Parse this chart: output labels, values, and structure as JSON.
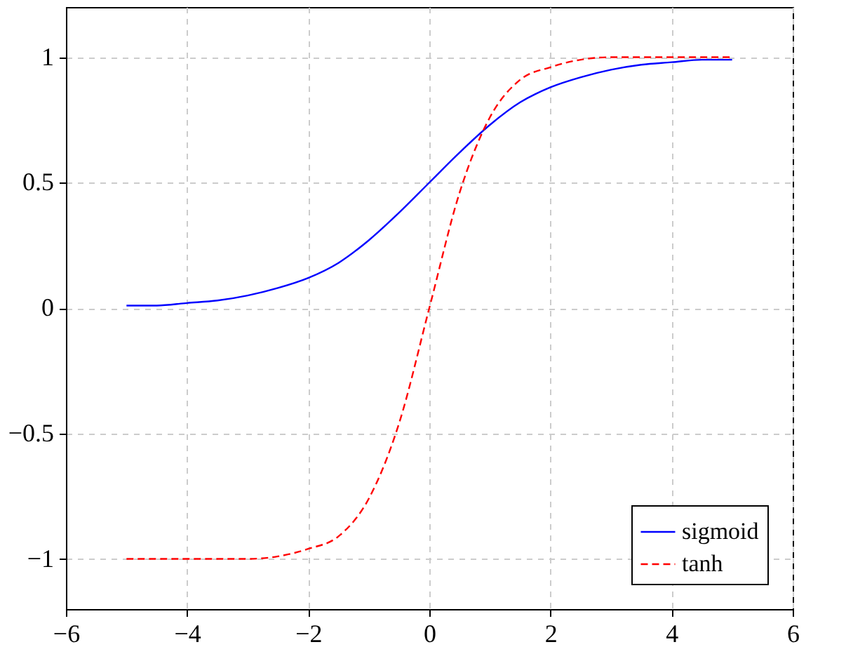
{
  "chart_data": {
    "type": "line",
    "x": [
      -5,
      -4.5,
      -4,
      -3.5,
      -3,
      -2.5,
      -2,
      -1.5,
      -1,
      -0.5,
      0,
      0.5,
      1,
      1.5,
      2,
      2.5,
      3,
      3.5,
      4,
      4.5,
      5
    ],
    "series": [
      {
        "name": "sigmoid",
        "color": "#0000ff",
        "line_style": "solid",
        "values": [
          0.01,
          0.01,
          0.02,
          0.03,
          0.05,
          0.08,
          0.12,
          0.18,
          0.27,
          0.38,
          0.5,
          0.62,
          0.73,
          0.82,
          0.88,
          0.92,
          0.95,
          0.97,
          0.98,
          0.99,
          0.99
        ]
      },
      {
        "name": "tanh",
        "color": "#ff0000",
        "line_style": "dashed",
        "values": [
          -1,
          -1,
          -1,
          -1,
          -1,
          -0.99,
          -0.96,
          -0.91,
          -0.76,
          -0.46,
          0,
          0.46,
          0.76,
          0.91,
          0.96,
          0.99,
          1,
          1,
          1,
          1,
          1
        ]
      }
    ],
    "xlim": [
      -6,
      6
    ],
    "xticks": [
      {
        "value": -6,
        "label": "−6"
      },
      {
        "value": -4,
        "label": "−4"
      },
      {
        "value": -2,
        "label": "−2"
      },
      0,
      2,
      4,
      6
    ],
    "ylim": [
      -1.2,
      1.2
    ],
    "yticks": [
      {
        "value": -1,
        "label": "−1"
      },
      {
        "value": -0.5,
        "label": "−0.5"
      },
      0,
      0.5,
      1
    ],
    "grid": true,
    "legend": "bottom right",
    "marker": "none"
  }
}
